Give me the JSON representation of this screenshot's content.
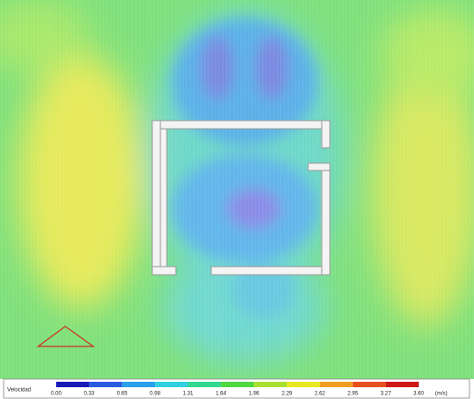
{
  "legend": {
    "label": "Velocidad",
    "ticks": [
      "0.00",
      "0.33",
      "0.65",
      "0.98",
      "1.31",
      "1.64",
      "1.96",
      "2.29",
      "2.62",
      "2.95",
      "3.27",
      "3.60"
    ],
    "unit": "(m/s)"
  }
}
